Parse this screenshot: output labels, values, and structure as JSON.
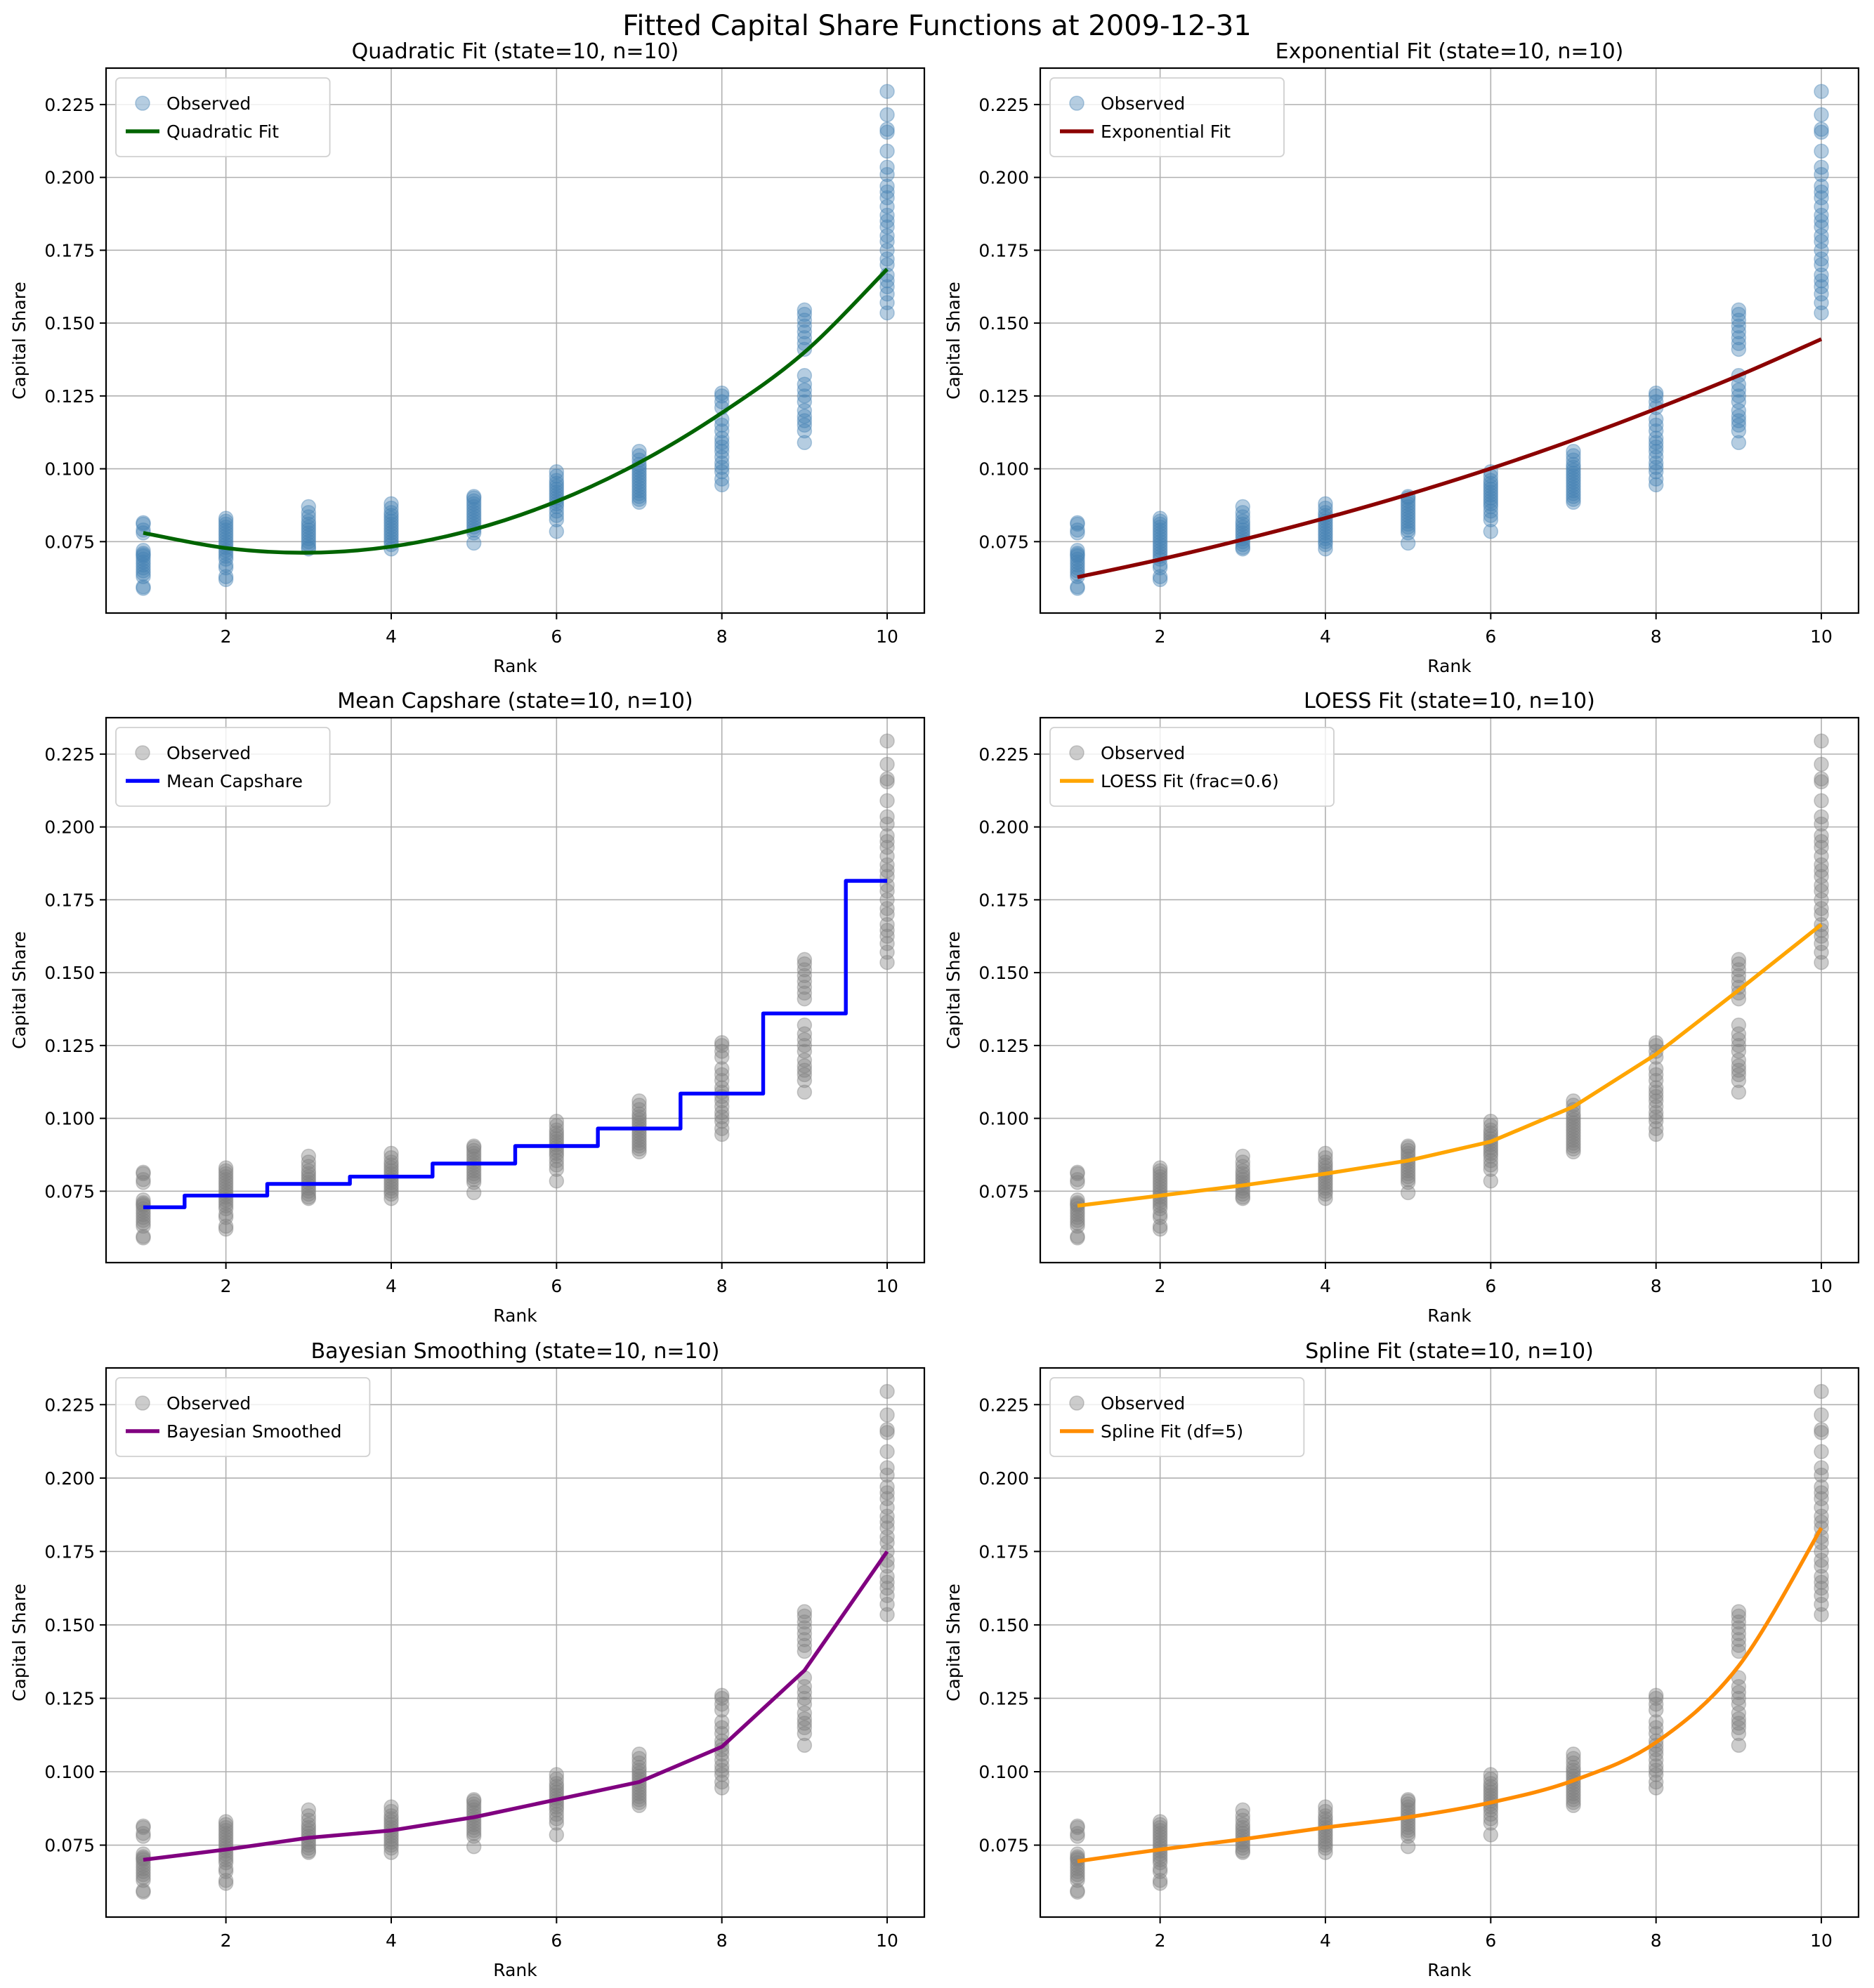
{
  "suptitle": "Fitted Capital Share Functions at 2009-12-31",
  "chart_data": [
    {
      "type": "scatter+line",
      "title": "Quadratic Fit (state=10, n=10)",
      "xlabel": "Rank",
      "ylabel": "Capital Share",
      "xlim": [
        0.55,
        10.45
      ],
      "ylim": [
        0.0505,
        0.2375
      ],
      "xticks": [
        2,
        4,
        6,
        8,
        10
      ],
      "yticks": [
        0.075,
        0.1,
        0.125,
        0.15,
        0.175,
        0.2,
        0.225
      ],
      "grid": true,
      "legend": "top-left",
      "observed": {
        "name": "Observed",
        "color": "#4682b4"
      },
      "fit": {
        "name": "Quadratic Fit",
        "color": "#006400",
        "style": "smooth",
        "x": [
          1,
          2,
          3,
          4,
          5,
          6,
          7,
          8,
          9,
          10
        ],
        "y": [
          0.078,
          0.0728,
          0.0712,
          0.0733,
          0.0792,
          0.0888,
          0.1021,
          0.1192,
          0.14,
          0.1685
        ]
      }
    },
    {
      "type": "scatter+line",
      "title": "Exponential Fit (state=10, n=10)",
      "xlabel": "Rank",
      "ylabel": "Capital Share",
      "xlim": [
        0.55,
        10.45
      ],
      "ylim": [
        0.0505,
        0.2375
      ],
      "xticks": [
        2,
        4,
        6,
        8,
        10
      ],
      "yticks": [
        0.075,
        0.1,
        0.125,
        0.15,
        0.175,
        0.2,
        0.225
      ],
      "grid": true,
      "legend": "top-left",
      "observed": {
        "name": "Observed",
        "color": "#4682b4"
      },
      "fit": {
        "name": "Exponential Fit",
        "color": "#8b0000",
        "style": "smooth",
        "x": [
          1,
          2,
          3,
          4,
          5,
          6,
          7,
          8,
          9,
          10
        ],
        "y": [
          0.0628,
          0.0689,
          0.0757,
          0.0831,
          0.0912,
          0.1001,
          0.1099,
          0.1206,
          0.132,
          0.1445
        ]
      }
    },
    {
      "type": "scatter+step",
      "title": "Mean Capshare (state=10, n=10)",
      "xlabel": "Rank",
      "ylabel": "Capital Share",
      "xlim": [
        0.55,
        10.45
      ],
      "ylim": [
        0.0505,
        0.2375
      ],
      "xticks": [
        2,
        4,
        6,
        8,
        10
      ],
      "yticks": [
        0.075,
        0.1,
        0.125,
        0.15,
        0.175,
        0.2,
        0.225
      ],
      "grid": true,
      "legend": "top-left",
      "observed": {
        "name": "Observed",
        "color": "#808080"
      },
      "fit": {
        "name": "Mean Capshare",
        "color": "#0000ff",
        "style": "step",
        "x": [
          1,
          2,
          3,
          4,
          5,
          6,
          7,
          8,
          9,
          10
        ],
        "y": [
          0.0695,
          0.0735,
          0.0775,
          0.08,
          0.0845,
          0.0905,
          0.0965,
          0.1085,
          0.136,
          0.1815
        ]
      }
    },
    {
      "type": "scatter+line",
      "title": "LOESS Fit (state=10, n=10)",
      "xlabel": "Rank",
      "ylabel": "Capital Share",
      "xlim": [
        0.55,
        10.45
      ],
      "ylim": [
        0.0505,
        0.2375
      ],
      "xticks": [
        2,
        4,
        6,
        8,
        10
      ],
      "yticks": [
        0.075,
        0.1,
        0.125,
        0.15,
        0.175,
        0.2,
        0.225
      ],
      "grid": true,
      "legend": "top-left",
      "observed": {
        "name": "Observed",
        "color": "#808080"
      },
      "fit": {
        "name": "LOESS Fit (frac=0.6)",
        "color": "#ffa500",
        "style": "linear",
        "x": [
          1,
          2,
          3,
          4,
          5,
          6,
          7,
          8,
          9,
          10
        ],
        "y": [
          0.07,
          0.0735,
          0.077,
          0.081,
          0.0855,
          0.092,
          0.104,
          0.122,
          0.144,
          0.1665
        ]
      }
    },
    {
      "type": "scatter+line",
      "title": "Bayesian Smoothing (state=10, n=10)",
      "xlabel": "Rank",
      "ylabel": "Capital Share",
      "xlim": [
        0.55,
        10.45
      ],
      "ylim": [
        0.0505,
        0.2375
      ],
      "xticks": [
        2,
        4,
        6,
        8,
        10
      ],
      "yticks": [
        0.075,
        0.1,
        0.125,
        0.15,
        0.175,
        0.2,
        0.225
      ],
      "grid": true,
      "legend": "top-left",
      "observed": {
        "name": "Observed",
        "color": "#808080"
      },
      "fit": {
        "name": "Bayesian Smoothed",
        "color": "#800080",
        "style": "linear",
        "x": [
          1,
          2,
          3,
          4,
          5,
          6,
          7,
          8,
          9,
          10
        ],
        "y": [
          0.07,
          0.0735,
          0.0775,
          0.08,
          0.0845,
          0.0905,
          0.0965,
          0.1085,
          0.1345,
          0.175
        ]
      }
    },
    {
      "type": "scatter+line",
      "title": "Spline Fit (state=10, n=10)",
      "xlabel": "Rank",
      "ylabel": "Capital Share",
      "xlim": [
        0.55,
        10.45
      ],
      "ylim": [
        0.0505,
        0.2375
      ],
      "xticks": [
        2,
        4,
        6,
        8,
        10
      ],
      "yticks": [
        0.075,
        0.1,
        0.125,
        0.15,
        0.175,
        0.2,
        0.225
      ],
      "grid": true,
      "legend": "top-left",
      "observed": {
        "name": "Observed",
        "color": "#808080"
      },
      "fit": {
        "name": "Spline Fit (df=5)",
        "color": "#ff8c00",
        "style": "smooth",
        "x": [
          1,
          2,
          3,
          4,
          5,
          6,
          7,
          8,
          9,
          10
        ],
        "y": [
          0.0695,
          0.0735,
          0.077,
          0.081,
          0.0845,
          0.0895,
          0.097,
          0.11,
          0.136,
          0.183
        ]
      }
    }
  ],
  "observed_points": {
    "1": [
      0.059,
      0.0595,
      0.063,
      0.064,
      0.065,
      0.066,
      0.067,
      0.068,
      0.069,
      0.07,
      0.0705,
      0.071,
      0.072,
      0.078,
      0.079,
      0.081,
      0.0815
    ],
    "2": [
      0.062,
      0.063,
      0.066,
      0.067,
      0.069,
      0.07,
      0.071,
      0.072,
      0.073,
      0.074,
      0.075,
      0.076,
      0.077,
      0.078,
      0.079,
      0.08,
      0.081,
      0.082,
      0.083
    ],
    "3": [
      0.0725,
      0.073,
      0.074,
      0.075,
      0.076,
      0.077,
      0.078,
      0.079,
      0.08,
      0.081,
      0.082,
      0.0835,
      0.085,
      0.087
    ],
    "4": [
      0.0725,
      0.074,
      0.075,
      0.076,
      0.077,
      0.078,
      0.079,
      0.08,
      0.081,
      0.082,
      0.083,
      0.084,
      0.085,
      0.0865,
      0.088
    ],
    "5": [
      0.0745,
      0.078,
      0.079,
      0.08,
      0.081,
      0.082,
      0.083,
      0.084,
      0.085,
      0.086,
      0.087,
      0.088,
      0.089,
      0.09,
      0.0905
    ],
    "6": [
      0.0785,
      0.0825,
      0.084,
      0.0855,
      0.087,
      0.088,
      0.089,
      0.09,
      0.091,
      0.092,
      0.093,
      0.094,
      0.095,
      0.096,
      0.0975,
      0.099
    ],
    "7": [
      0.0885,
      0.0895,
      0.0905,
      0.0915,
      0.0925,
      0.0935,
      0.0945,
      0.0955,
      0.0965,
      0.0975,
      0.0985,
      0.0995,
      0.1005,
      0.1015,
      0.103,
      0.1045,
      0.106
    ],
    "8": [
      0.0945,
      0.0965,
      0.099,
      0.1005,
      0.102,
      0.104,
      0.106,
      0.1075,
      0.109,
      0.1105,
      0.113,
      0.115,
      0.117,
      0.121,
      0.123,
      0.125,
      0.126
    ],
    "9": [
      0.109,
      0.113,
      0.115,
      0.1165,
      0.118,
      0.12,
      0.123,
      0.125,
      0.127,
      0.129,
      0.132,
      0.141,
      0.143,
      0.145,
      0.147,
      0.149,
      0.151,
      0.153,
      0.1545
    ],
    "10": [
      0.1535,
      0.157,
      0.16,
      0.1625,
      0.1645,
      0.1665,
      0.17,
      0.172,
      0.175,
      0.178,
      0.18,
      0.183,
      0.185,
      0.187,
      0.19,
      0.193,
      0.195,
      0.197,
      0.201,
      0.2035,
      0.209,
      0.2155,
      0.2165,
      0.2215,
      0.2295
    ]
  }
}
